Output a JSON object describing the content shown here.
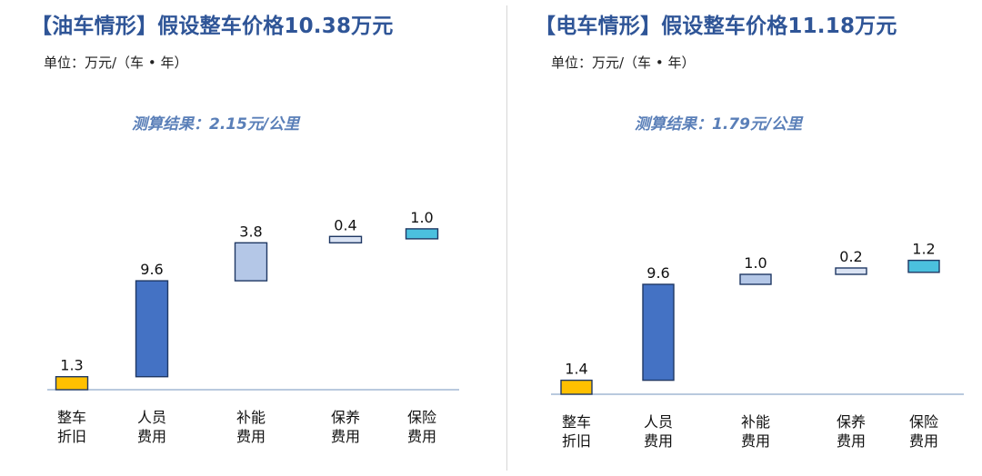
{
  "chart_data": [
    {
      "type": "bar",
      "subtype": "waterfall",
      "title": "【油车情形】假设整车价格10.38万元",
      "unit_label": "单位：万元/（车 • 年）",
      "result_label": "测算结果：2.15元/公里",
      "categories": [
        [
          "整车",
          "折旧"
        ],
        [
          "人员",
          "费用"
        ],
        [
          "补能",
          "费用"
        ],
        [
          "保养",
          "费用"
        ],
        [
          "保险",
          "费用"
        ]
      ],
      "values": [
        1.3,
        9.6,
        3.8,
        0.4,
        1.0
      ],
      "value_labels": [
        "1.3",
        "9.6",
        "3.8",
        "0.4",
        "1.0"
      ],
      "colors": [
        "#ffc000",
        "#4472c4",
        "#b4c7e7",
        "#dae3f3",
        "#4bc0de"
      ]
    },
    {
      "type": "bar",
      "subtype": "waterfall",
      "title": "【电车情形】假设整车价格11.18万元",
      "unit_label": "单位：万元/（车 • 年）",
      "result_label": "测算结果：1.79元/公里",
      "categories": [
        [
          "整车",
          "折旧"
        ],
        [
          "人员",
          "费用"
        ],
        [
          "补能",
          "费用"
        ],
        [
          "保养",
          "费用"
        ],
        [
          "保险",
          "费用"
        ]
      ],
      "values": [
        1.4,
        9.6,
        1.0,
        0.2,
        1.2
      ],
      "value_labels": [
        "1.4",
        "9.6",
        "1.0",
        "0.2",
        "1.2"
      ],
      "colors": [
        "#ffc000",
        "#4472c4",
        "#b4c7e7",
        "#dae3f3",
        "#4bc0de"
      ]
    }
  ]
}
